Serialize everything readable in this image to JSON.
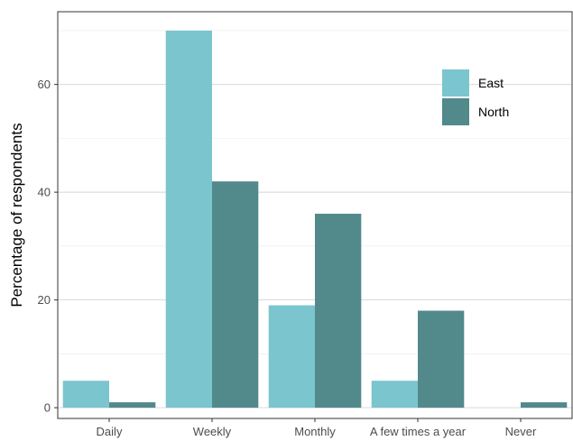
{
  "chart_data": {
    "type": "bar",
    "categories": [
      "Daily",
      "Weekly",
      "Monthly",
      "A few times a year",
      "Never"
    ],
    "series": [
      {
        "name": "East",
        "values": [
          5,
          70,
          19,
          5,
          0
        ]
      },
      {
        "name": "North",
        "values": [
          1,
          42,
          36,
          18,
          1
        ]
      }
    ],
    "colors": {
      "East": "#7bc5ce",
      "North": "#52898b"
    },
    "ylabel": "Percentage of respondents",
    "xlabel": "",
    "ylim": [
      -2,
      73.5
    ],
    "yticks": [
      0,
      20,
      40,
      60
    ],
    "grid": true,
    "legend": "top-right"
  }
}
